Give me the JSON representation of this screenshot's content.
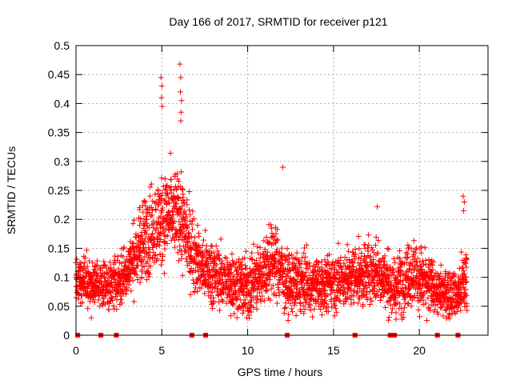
{
  "chart_data": {
    "type": "scatter",
    "title": "Day 166 of 2017, SRMTID for receiver p121",
    "xlabel": "GPS time / hours",
    "ylabel": "SRMTID / TECUs",
    "xlim": [
      0,
      24
    ],
    "ylim": [
      0,
      0.5
    ],
    "xticks": [
      0,
      5,
      10,
      15,
      20
    ],
    "xtick_labels": [
      "0",
      "5",
      "10",
      "15",
      "20"
    ],
    "yticks": [
      0,
      0.05,
      0.1,
      0.15,
      0.2,
      0.25,
      0.3,
      0.35,
      0.4,
      0.45,
      0.5
    ],
    "ytick_labels": [
      "0",
      "0.05",
      "0.1",
      "0.15",
      "0.2",
      "0.25",
      "0.3",
      "0.35",
      "0.4",
      "0.45",
      "0.5"
    ],
    "grid": true,
    "marker": "plus",
    "series_color": "#ff0000",
    "zero_markers_x": [
      0.1,
      1.45,
      2.35,
      6.75,
      7.55,
      12.3,
      16.25,
      18.3,
      18.55,
      21.05,
      22.25
    ],
    "outliers": [
      {
        "x": 4.95,
        "y": 0.445
      },
      {
        "x": 5.0,
        "y": 0.43
      },
      {
        "x": 4.98,
        "y": 0.41
      },
      {
        "x": 5.02,
        "y": 0.395
      },
      {
        "x": 6.05,
        "y": 0.468
      },
      {
        "x": 6.1,
        "y": 0.445
      },
      {
        "x": 6.08,
        "y": 0.42
      },
      {
        "x": 6.15,
        "y": 0.405
      },
      {
        "x": 6.12,
        "y": 0.385
      },
      {
        "x": 6.1,
        "y": 0.37
      },
      {
        "x": 12.05,
        "y": 0.29
      },
      {
        "x": 17.55,
        "y": 0.222
      },
      {
        "x": 22.55,
        "y": 0.24
      },
      {
        "x": 22.62,
        "y": 0.23
      },
      {
        "x": 22.58,
        "y": 0.215
      }
    ],
    "envelope": [
      {
        "t": 0,
        "center": 0.095,
        "spread": 0.02
      },
      {
        "t": 1,
        "center": 0.09,
        "spread": 0.02
      },
      {
        "t": 2,
        "center": 0.085,
        "spread": 0.022
      },
      {
        "t": 3,
        "center": 0.11,
        "spread": 0.025
      },
      {
        "t": 4,
        "center": 0.17,
        "spread": 0.035
      },
      {
        "t": 5,
        "center": 0.2,
        "spread": 0.04
      },
      {
        "t": 6,
        "center": 0.21,
        "spread": 0.04
      },
      {
        "t": 6.7,
        "center": 0.15,
        "spread": 0.03
      },
      {
        "t": 7.5,
        "center": 0.11,
        "spread": 0.025
      },
      {
        "t": 9,
        "center": 0.09,
        "spread": 0.025
      },
      {
        "t": 10,
        "center": 0.08,
        "spread": 0.025
      },
      {
        "t": 11.5,
        "center": 0.13,
        "spread": 0.03
      },
      {
        "t": 12.4,
        "center": 0.09,
        "spread": 0.025
      },
      {
        "t": 14,
        "center": 0.085,
        "spread": 0.022
      },
      {
        "t": 16,
        "center": 0.1,
        "spread": 0.025
      },
      {
        "t": 17.5,
        "center": 0.11,
        "spread": 0.03
      },
      {
        "t": 18.5,
        "center": 0.08,
        "spread": 0.025
      },
      {
        "t": 19.5,
        "center": 0.11,
        "spread": 0.03
      },
      {
        "t": 21,
        "center": 0.075,
        "spread": 0.02
      },
      {
        "t": 22.3,
        "center": 0.07,
        "spread": 0.02
      },
      {
        "t": 22.8,
        "center": 0.1,
        "spread": 0.03
      }
    ],
    "time_range": [
      0,
      22.8
    ],
    "sample_step_hours": 0.03
  }
}
